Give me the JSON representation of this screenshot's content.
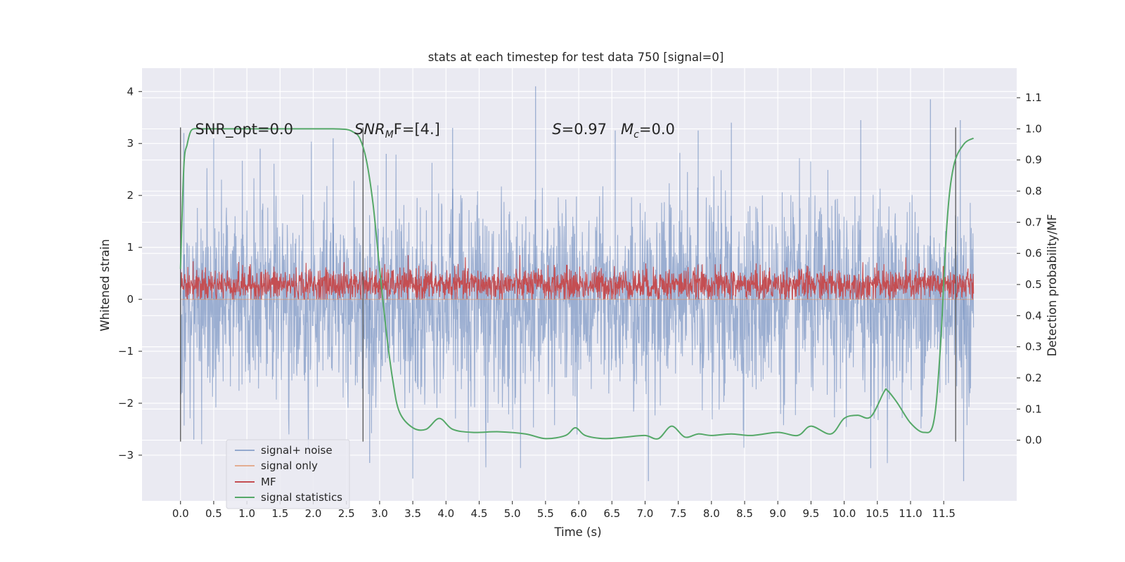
{
  "chart_data": {
    "type": "line",
    "title": "stats at each timestep for test data 750 [signal=0]",
    "xlabel": "Time (s)",
    "ylabel": "Whitened strain",
    "ylabel_right": "Detection probability/MF",
    "xlim": [
      -0.58,
      12.6
    ],
    "ylim": [
      -3.88,
      4.45
    ],
    "ylim_right": [
      -0.195,
      1.195
    ],
    "x_ticks": [
      0.0,
      0.5,
      1.0,
      1.5,
      2.0,
      2.5,
      3.0,
      3.5,
      4.0,
      4.5,
      5.0,
      5.5,
      6.0,
      6.5,
      7.0,
      7.5,
      8.0,
      8.5,
      9.0,
      9.5,
      10.0,
      10.5,
      11.0,
      11.5
    ],
    "x_tick_labels": [
      "0.0",
      "0.5",
      "1.0",
      "1.5",
      "2.0",
      "2.5",
      "3.0",
      "3.5",
      "4.0",
      "4.5",
      "5.0",
      "5.5",
      "6.0",
      "6.5",
      "7.0",
      "7.5",
      "8.0",
      "8.5",
      "9.0",
      "9.5",
      "10.0",
      "10.5",
      "11.0",
      "11.5"
    ],
    "y_ticks": [
      -3,
      -2,
      -1,
      0,
      1,
      2,
      3,
      4
    ],
    "y_tick_labels": [
      "−3",
      "−2",
      "−1",
      "0",
      "1",
      "2",
      "3",
      "4"
    ],
    "y_ticks_right": [
      0.0,
      0.1,
      0.2,
      0.3,
      0.4,
      0.5,
      0.6,
      0.7,
      0.8,
      0.9,
      1.0,
      1.1
    ],
    "y_tick_labels_right": [
      "0.0",
      "0.1",
      "0.2",
      "0.3",
      "0.4",
      "0.5",
      "0.6",
      "0.7",
      "0.8",
      "0.9",
      "1.0",
      "1.1"
    ],
    "grid": true,
    "legend_position": "lower-left",
    "series": [
      {
        "name": "signal+ noise",
        "color": "#4c72b0",
        "axis": "left",
        "style": "dense noise, approx range -3.5 to 4.1, typical band -2.2 to 2.2",
        "x_range": [
          0.0,
          11.95
        ],
        "envelope_peaks": [
          [
            0.05,
            3.2
          ],
          [
            0.5,
            3.1
          ],
          [
            1.2,
            2.9
          ],
          [
            2.3,
            3.1
          ],
          [
            3.1,
            2.8
          ],
          [
            4.1,
            3.3
          ],
          [
            5.35,
            4.1
          ],
          [
            6.55,
            3.25
          ],
          [
            7.8,
            3.25
          ],
          [
            8.3,
            3.4
          ],
          [
            10.25,
            3.45
          ],
          [
            11.3,
            3.85
          ],
          [
            11.75,
            3.45
          ]
        ],
        "envelope_troughs": [
          [
            0.2,
            -2.7
          ],
          [
            2.85,
            -3.15
          ],
          [
            3.5,
            -3.45
          ],
          [
            7.05,
            -3.5
          ],
          [
            10.4,
            -3.25
          ],
          [
            11.8,
            -3.5
          ]
        ]
      },
      {
        "name": "signal only",
        "color": "#dd8452",
        "axis": "left",
        "x": [
          0.0,
          11.95
        ],
        "y": [
          0.0,
          0.0
        ]
      },
      {
        "name": "MF",
        "color": "#c44e52",
        "axis": "left",
        "style": "dense noise, band approx 0.0 to 0.95",
        "x_range": [
          0.0,
          11.95
        ],
        "band": [
          0.0,
          0.95
        ]
      },
      {
        "name": "signal statistics",
        "color": "#55a868",
        "axis": "right",
        "x": [
          0.0,
          0.05,
          0.1,
          0.15,
          0.2,
          0.3,
          0.5,
          1.0,
          1.5,
          2.0,
          2.3,
          2.5,
          2.6,
          2.7,
          2.8,
          2.9,
          3.0,
          3.1,
          3.2,
          3.3,
          3.5,
          3.7,
          3.9,
          4.1,
          4.4,
          4.8,
          5.2,
          5.5,
          5.8,
          5.95,
          6.1,
          6.4,
          6.7,
          7.0,
          7.2,
          7.4,
          7.6,
          7.8,
          8.0,
          8.3,
          8.6,
          9.0,
          9.3,
          9.5,
          9.8,
          10.0,
          10.2,
          10.4,
          10.6,
          10.65,
          10.8,
          11.0,
          11.2,
          11.35,
          11.45,
          11.55,
          11.65,
          11.8,
          11.95
        ],
        "y": [
          0.55,
          0.88,
          0.95,
          0.99,
          1.0,
          1.0,
          1.0,
          1.0,
          1.0,
          1.0,
          1.0,
          0.998,
          0.99,
          0.97,
          0.9,
          0.76,
          0.55,
          0.35,
          0.19,
          0.09,
          0.04,
          0.035,
          0.07,
          0.035,
          0.025,
          0.027,
          0.02,
          0.005,
          0.015,
          0.04,
          0.015,
          0.005,
          0.01,
          0.015,
          0.005,
          0.045,
          0.01,
          0.02,
          0.015,
          0.02,
          0.015,
          0.025,
          0.015,
          0.045,
          0.02,
          0.07,
          0.08,
          0.075,
          0.155,
          0.16,
          0.12,
          0.055,
          0.025,
          0.06,
          0.3,
          0.7,
          0.88,
          0.95,
          0.97
        ]
      }
    ],
    "vertical_lines": [
      0.0,
      2.75,
      11.68
    ],
    "annotations": [
      {
        "text": "SNR_opt=0.0",
        "x": 0.22,
        "y": 3.18
      },
      {
        "text_parts": [
          "SNR",
          "M",
          "F=[4.]"
        ],
        "x": 2.62,
        "y": 3.18
      },
      {
        "text_parts": [
          "S",
          "=0.97   ",
          "M",
          "c",
          "=0.0"
        ],
        "x": 5.6,
        "y": 3.18
      }
    ]
  }
}
